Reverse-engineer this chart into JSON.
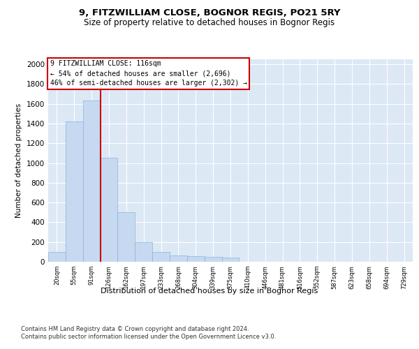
{
  "title1": "9, FITZWILLIAM CLOSE, BOGNOR REGIS, PO21 5RY",
  "title2": "Size of property relative to detached houses in Bognor Regis",
  "xlabel": "Distribution of detached houses by size in Bognor Regis",
  "ylabel": "Number of detached properties",
  "annotation_line": "9 FITZWILLIAM CLOSE: 116sqm\n← 54% of detached houses are smaller (2,696)\n46% of semi-detached houses are larger (2,302) →",
  "vline_x": 2.5,
  "categories": [
    "20sqm",
    "55sqm",
    "91sqm",
    "126sqm",
    "162sqm",
    "197sqm",
    "233sqm",
    "268sqm",
    "304sqm",
    "339sqm",
    "375sqm",
    "410sqm",
    "446sqm",
    "481sqm",
    "516sqm",
    "552sqm",
    "587sqm",
    "623sqm",
    "658sqm",
    "694sqm",
    "729sqm"
  ],
  "values": [
    100,
    1420,
    1630,
    1050,
    500,
    200,
    100,
    65,
    55,
    50,
    40,
    0,
    0,
    0,
    0,
    0,
    0,
    0,
    0,
    0,
    0
  ],
  "bar_color": "#c6d9f0",
  "bar_edge_color": "#8ab4d9",
  "vline_color": "#cc0000",
  "background_color": "#dde8f5",
  "annotation_box_color": "#ffffff",
  "annotation_box_edge": "#cc0000",
  "ylim": [
    0,
    2050
  ],
  "yticks": [
    0,
    200,
    400,
    600,
    800,
    1000,
    1200,
    1400,
    1600,
    1800,
    2000
  ],
  "footer": "Contains HM Land Registry data © Crown copyright and database right 2024.\nContains public sector information licensed under the Open Government Licence v3.0."
}
